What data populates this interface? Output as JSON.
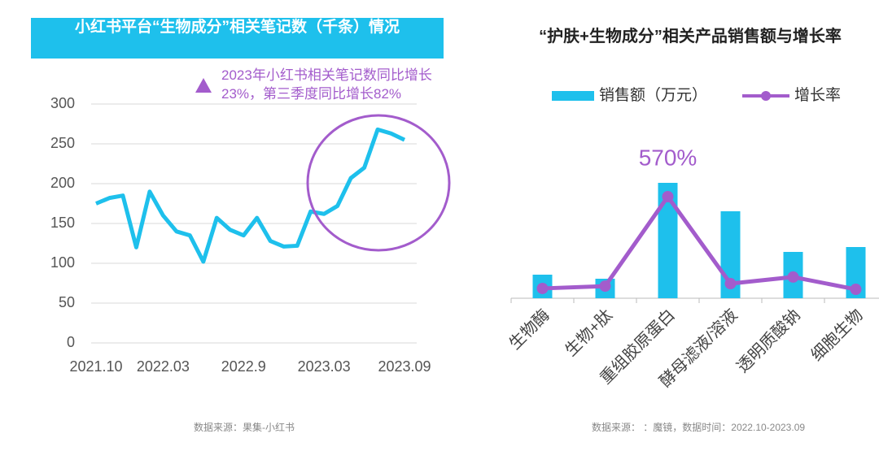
{
  "chart_data": [
    {
      "type": "line",
      "title": "小红书平台“生物成分”相关笔记数（千条）情况",
      "annotation": "2023年小红书相关笔记数同比增长23%，第三季度同比增长82%",
      "source": "数据来源：果集-小红书",
      "categories": [
        "2021.10",
        null,
        null,
        null,
        null,
        "2022.03",
        null,
        null,
        null,
        null,
        null,
        "2022.9",
        null,
        null,
        null,
        null,
        null,
        "2023.03",
        null,
        null,
        null,
        null,
        null,
        "2023.09"
      ],
      "values": [
        175,
        182,
        185,
        120,
        190,
        160,
        140,
        135,
        102,
        157,
        142,
        135,
        157,
        128,
        121,
        122,
        165,
        162,
        172,
        207,
        220,
        268,
        263,
        255
      ],
      "color": "#1ec0ec",
      "ylim": [
        0,
        300
      ],
      "yticks": [
        0,
        50,
        100,
        150,
        200,
        250,
        300
      ],
      "grid": true
    },
    {
      "type": "combo",
      "title": "“护肤+生物成分”相关产品销售额与增长率",
      "source": "数据来源：  ：魔镜，数据时间：2022.10-2023.09",
      "categories": [
        "生物酶",
        "生物+肽",
        "重组胶原蛋白",
        "酵母滤液/溶液",
        "透明质酸钠",
        "细胞生物"
      ],
      "series": [
        {
          "name": "销售额（万元）",
          "type": "bar",
          "color": "#1ec0ec",
          "values": [
            29,
            24,
            142,
            107,
            57,
            63
          ]
        },
        {
          "name": "增长率",
          "type": "line",
          "color": "#a35ccc",
          "values": [
            55,
            68,
            570,
            82,
            119,
            50
          ],
          "value_labels": [
            null,
            null,
            "570%",
            null,
            null,
            null
          ]
        }
      ]
    }
  ]
}
